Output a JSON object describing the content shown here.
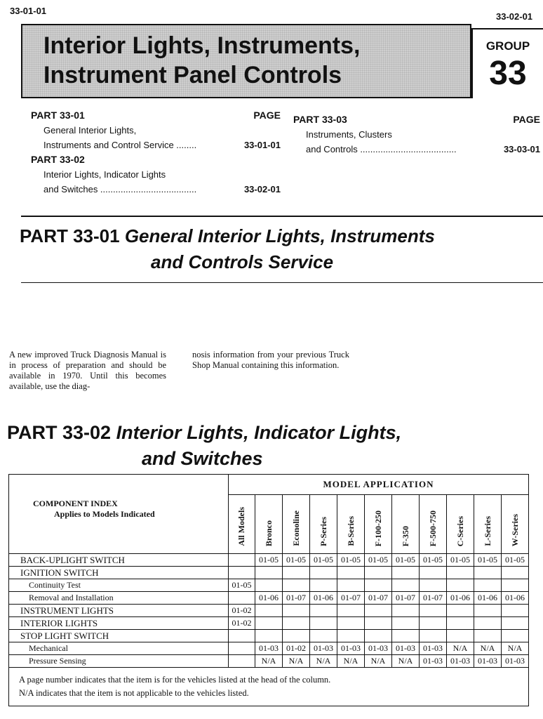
{
  "header": {
    "page_left": "33-01-01",
    "page_right": "33-02-01",
    "title_line1": "Interior Lights, Instruments,",
    "title_line2": "Instrument Panel Controls",
    "group_label": "GROUP",
    "group_number": "33"
  },
  "toc": {
    "page_label": "PAGE",
    "entries": [
      {
        "part": "PART 33-01",
        "lines": [
          "General Interior Lights,",
          "Instruments and Control Service ........"
        ],
        "page": "33-01-01"
      },
      {
        "part": "PART 33-02",
        "lines": [
          "Interior Lights, Indicator Lights",
          "and Switches ......................................"
        ],
        "page": "33-02-01"
      },
      {
        "part": "PART 33-03",
        "lines": [
          "Instruments, Clusters",
          "and Controls ......................................"
        ],
        "page": "33-03-01"
      }
    ]
  },
  "part1": {
    "prefix": "PART 33-01",
    "title_line1": "General Interior Lights, Instruments",
    "title_line2": "and Controls Service",
    "col1": "A new improved Truck Diagnosis Manual is in process of preparation and should be available in 1970. Until this becomes available, use the diag-",
    "col2": "nosis information from your previous Truck Shop Manual containing this information."
  },
  "part2": {
    "prefix": "PART 33-02",
    "title_line1": "Interior Lights, Indicator Lights,",
    "title_line2": "and Switches"
  },
  "table": {
    "index_title": "COMPONENT INDEX",
    "index_subtitle": "Applies to Models Indicated",
    "group_header": "MODEL APPLICATION",
    "columns": [
      "All Models",
      "Bronco",
      "Econoline",
      "P-Series",
      "B-Series",
      "F-100-250",
      "F-350",
      "F-500-750",
      "C-Series",
      "L-Series",
      "W-Series"
    ],
    "rows": [
      {
        "label": "BACK-UPLIGHT SWITCH",
        "sub": false,
        "values": [
          "",
          "01-05",
          "01-05",
          "01-05",
          "01-05",
          "01-05",
          "01-05",
          "01-05",
          "01-05",
          "01-05",
          "01-05"
        ]
      },
      {
        "label": "IGNITION SWITCH",
        "sub": false,
        "values": [
          "",
          "",
          "",
          "",
          "",
          "",
          "",
          "",
          "",
          "",
          ""
        ]
      },
      {
        "label": "Continuity Test",
        "sub": true,
        "values": [
          "01-05",
          "",
          "",
          "",
          "",
          "",
          "",
          "",
          "",
          "",
          ""
        ]
      },
      {
        "label": "Removal and Installation",
        "sub": true,
        "values": [
          "",
          "01-06",
          "01-07",
          "01-06",
          "01-07",
          "01-07",
          "01-07",
          "01-07",
          "01-06",
          "01-06",
          "01-06"
        ]
      },
      {
        "label": "INSTRUMENT LIGHTS",
        "sub": false,
        "values": [
          "01-02",
          "",
          "",
          "",
          "",
          "",
          "",
          "",
          "",
          "",
          ""
        ]
      },
      {
        "label": "INTERIOR LIGHTS",
        "sub": false,
        "values": [
          "01-02",
          "",
          "",
          "",
          "",
          "",
          "",
          "",
          "",
          "",
          ""
        ]
      },
      {
        "label": "STOP LIGHT SWITCH",
        "sub": false,
        "values": [
          "",
          "",
          "",
          "",
          "",
          "",
          "",
          "",
          "",
          "",
          ""
        ]
      },
      {
        "label": "Mechanical",
        "sub": true,
        "values": [
          "",
          "01-03",
          "01-02",
          "01-03",
          "01-03",
          "01-03",
          "01-03",
          "01-03",
          "N/A",
          "N/A",
          "N/A"
        ]
      },
      {
        "label": "Pressure Sensing",
        "sub": true,
        "values": [
          "",
          "N/A",
          "N/A",
          "N/A",
          "N/A",
          "N/A",
          "N/A",
          "01-03",
          "01-03",
          "01-03",
          "01-03"
        ]
      }
    ],
    "footnote1": "A page number indicates that the item is for the vehicles listed at the head of the column.",
    "footnote2": "N/A indicates that the item is not applicable to the vehicles listed."
  }
}
